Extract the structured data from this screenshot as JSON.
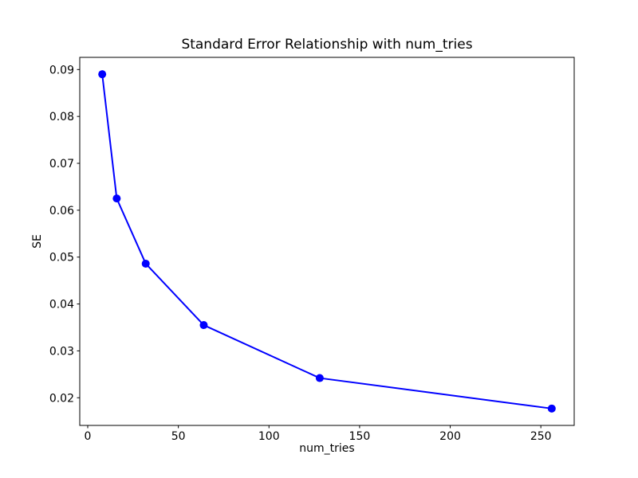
{
  "figure": {
    "background_color": "#ffffff"
  },
  "chart_data": {
    "type": "line",
    "title": "Standard Error Relationship with num_tries",
    "xlabel": "num_tries",
    "ylabel": "SE",
    "x": [
      8,
      16,
      32,
      64,
      128,
      256
    ],
    "y": [
      0.089,
      0.0625,
      0.0486,
      0.0355,
      0.0242,
      0.0177
    ],
    "xlim": [
      -4.4,
      268.4
    ],
    "ylim": [
      0.0141,
      0.0926
    ],
    "xtick_values": [
      0,
      50,
      100,
      150,
      200,
      250
    ],
    "xtick_labels": [
      "0",
      "50",
      "100",
      "150",
      "200",
      "250"
    ],
    "ytick_values": [
      0.02,
      0.03,
      0.04,
      0.05,
      0.06,
      0.07,
      0.08,
      0.09
    ],
    "ytick_labels": [
      "0.02",
      "0.03",
      "0.04",
      "0.05",
      "0.06",
      "0.07",
      "0.08",
      "0.09"
    ],
    "line_color": "#0000ff",
    "marker": "circle",
    "marker_color": "#0000ff",
    "grid": false,
    "legend": "none",
    "spine_color": "#000000",
    "tick_color": "#000000",
    "text_color": "#000000"
  }
}
